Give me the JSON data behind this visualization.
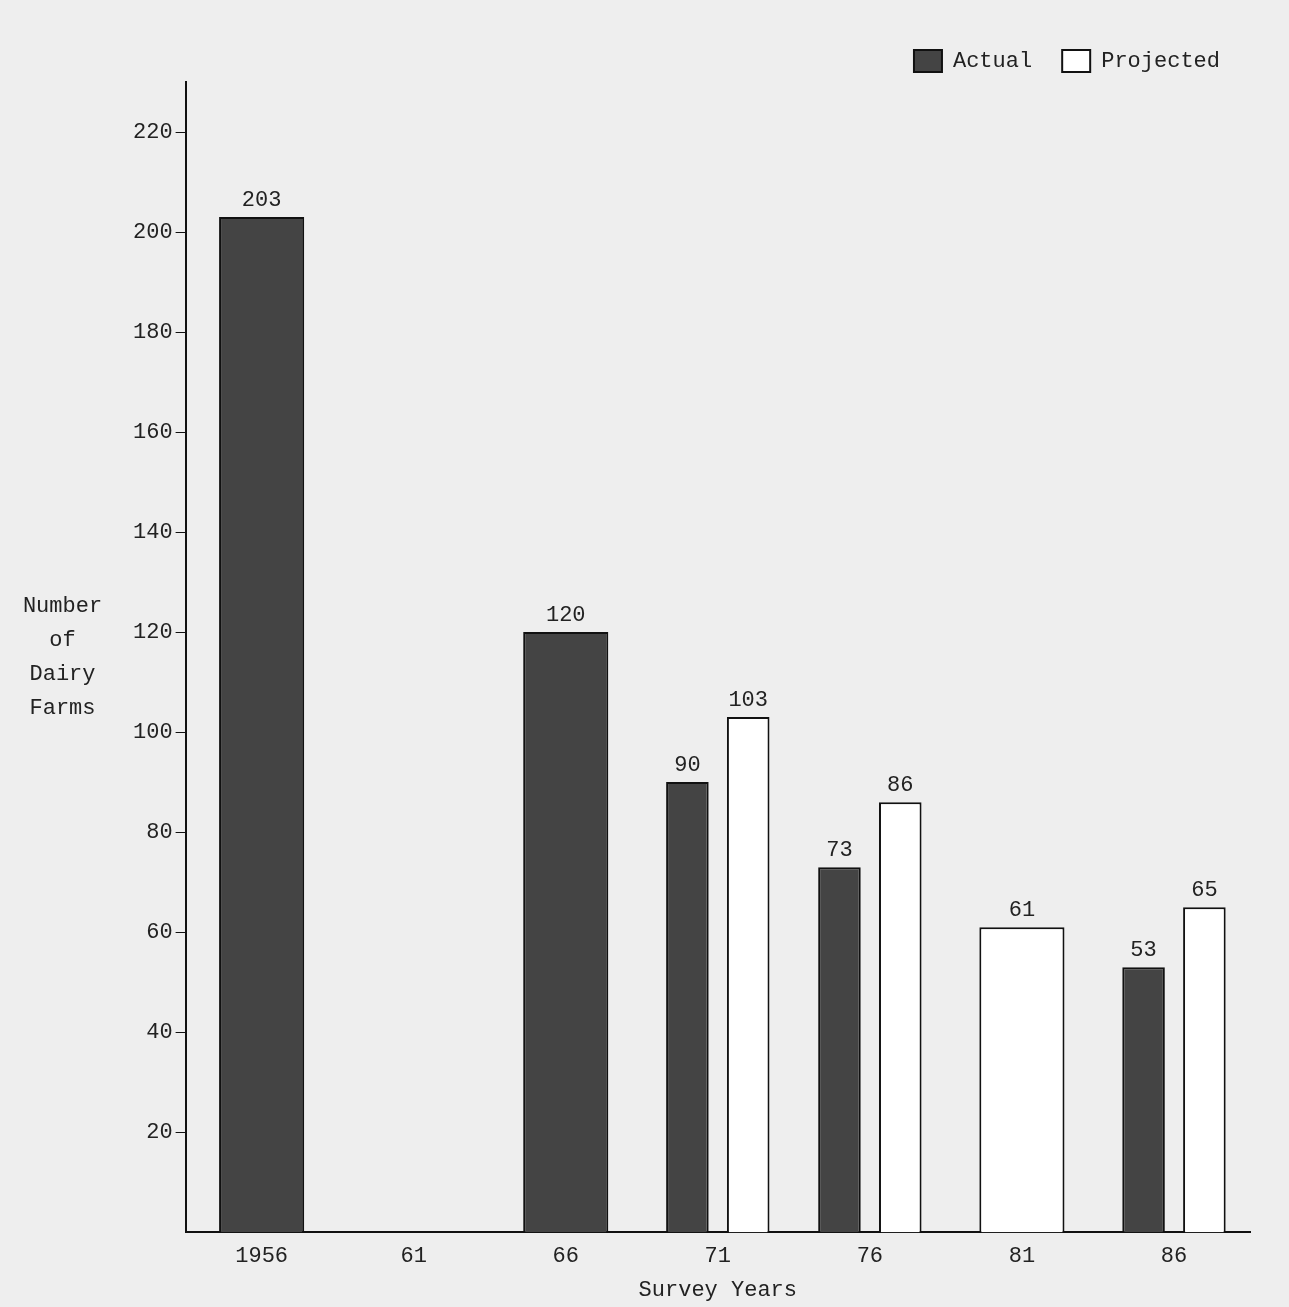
{
  "chart_data": {
    "type": "bar",
    "xlabel": "Survey Years",
    "ylabel": "Number of Dairy Farms",
    "categories": [
      "1956",
      "61",
      "66",
      "71",
      "76",
      "81",
      "86"
    ],
    "series": [
      {
        "name": "Actual",
        "color": "#444444",
        "values": [
          203,
          null,
          120,
          90,
          73,
          null,
          53
        ]
      },
      {
        "name": "Projected",
        "color": "#ffffff",
        "values": [
          null,
          null,
          null,
          103,
          86,
          61,
          65
        ]
      }
    ],
    "ylim": [
      0,
      230
    ],
    "yticks": [
      20,
      40,
      60,
      80,
      100,
      120,
      140,
      160,
      180,
      200,
      220
    ],
    "grid": false,
    "legend": "top right",
    "data_labels": true
  }
}
